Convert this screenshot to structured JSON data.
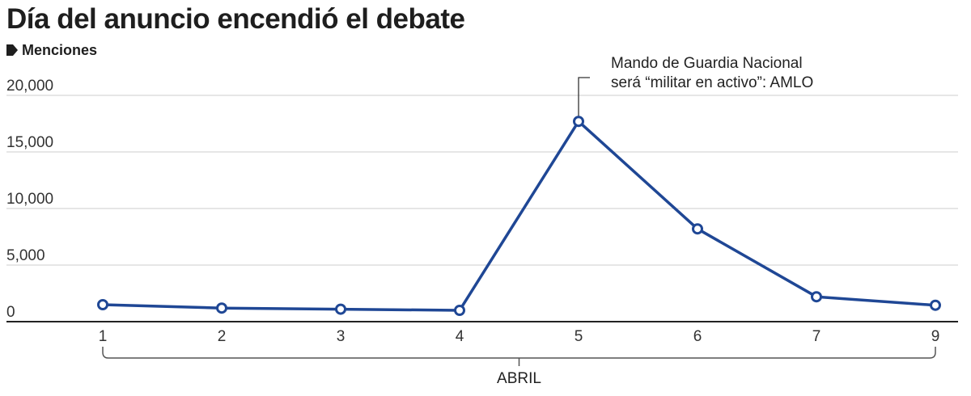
{
  "chart_data": {
    "type": "line",
    "title": "Día del anuncio encendió el debate",
    "ylabel": "Menciones",
    "xlabel": "ABRIL",
    "categories": [
      "1",
      "2",
      "3",
      "4",
      "5",
      "6",
      "7",
      "9"
    ],
    "series": [
      {
        "values": [
          1500,
          1200,
          1100,
          1000,
          17700,
          8200,
          2200,
          1450
        ]
      }
    ],
    "yticks": [
      "0",
      "5,000",
      "10,000",
      "15,000",
      "20,000"
    ],
    "ytick_values": [
      0,
      5000,
      10000,
      15000,
      20000
    ],
    "ylim": [
      0,
      20000
    ],
    "grid": true,
    "annotation": {
      "category": "5",
      "lines": [
        "Mando de Guardia Nacional",
        "será “militar en activo”: AMLO"
      ]
    },
    "colors": {
      "line": "#1f4795",
      "grid": "#cccccc",
      "axis": "#222222",
      "marker_fill": "#ffffff"
    }
  }
}
